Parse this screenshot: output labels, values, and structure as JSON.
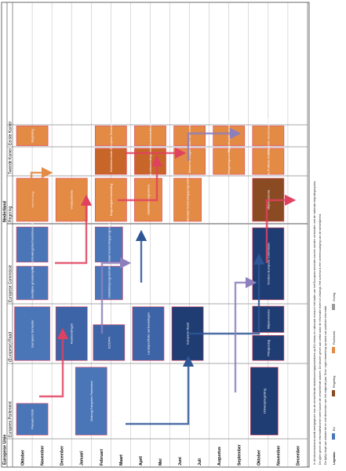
{
  "headers": {
    "eu": "Europese Unie",
    "nl": "Nederland",
    "cols": [
      "Europees Parlement",
      "(Europese) Raad",
      "Europese Commissie",
      "Regering",
      "Tweede Kamer",
      "Eerste Kamer"
    ]
  },
  "months": [
    "Oktober",
    "November",
    "December",
    "Januari",
    "Februari",
    "Maart",
    "April",
    "Mei",
    "Juni",
    "Juli",
    "Augustus",
    "September",
    "Oktober",
    "November",
    "December"
  ],
  "boxes": [
    {
      "text": "Plenaire DGM",
      "color": "#4a76b8"
    },
    {
      "text": "Europees Semester",
      "color": "#4a76b8"
    },
    {
      "text": "Jaarlijkse groeianalyse",
      "color": "#4a76b8"
    },
    {
      "text": "Waarschuwingsmechanismeverslag",
      "color": "#4a76b8"
    },
    {
      "text": "Aanbevelingen",
      "color": "#3d64a6"
    },
    {
      "text": "ECOFIN",
      "color": "#3d64a6"
    },
    {
      "text": "Dialoog Europees Parlement",
      "color": "#4a76b8"
    },
    {
      "text": "Stabiliteitsprogramma",
      "color": "#4a76b8"
    },
    {
      "text": "Nationaal hervormingsprogramma",
      "color": "#4a76b8"
    },
    {
      "text": "Landspecifieke aanbevelingen",
      "color": "#3d64a6"
    },
    {
      "text": "Europese Raad",
      "color": "#1f3d73"
    },
    {
      "text": "Ontwerpbegroting",
      "color": "#1f3d73"
    },
    {
      "text": "Oordeel Europese Commissie",
      "color": "#1f3d73"
    },
    {
      "text": "Prinsjesdag",
      "color": "#1f3d73"
    },
    {
      "text": "Miljoenennota",
      "color": "#1f3d73"
    },
    {
      "text": "Jaarverslag",
      "color": "#e38a45"
    },
    {
      "text": "Voorjaarsnota",
      "color": "#e38a45"
    },
    {
      "text": "Begrotingsbehandeling",
      "color": "#e38a45"
    },
    {
      "text": "Stabiliteitsprogramma",
      "color": "#e38a45"
    },
    {
      "text": "Nationaal hervormingsprogramma",
      "color": "#e38a45"
    },
    {
      "text": "Kabinetsreactie",
      "color": "#c8662a"
    },
    {
      "text": "Verantwoordingsdebat",
      "color": "#c8662a"
    },
    {
      "text": "Beleid en budget",
      "color": "#e38a45"
    },
    {
      "text": "Wetgevingsoverleg",
      "color": "#e38a45"
    },
    {
      "text": "Algemene Politieke Beschouwingen",
      "color": "#e38a45"
    },
    {
      "text": "Begroting",
      "color": "#e38a45"
    },
    {
      "text": "Europees Semester",
      "color": "#e38a45"
    },
    {
      "text": "Commissiedebat",
      "color": "#e38a45"
    },
    {
      "text": "Plenaire behandeling",
      "color": "#e38a45"
    },
    {
      "text": "Begrotingsbehandeling",
      "color": "#e38a45"
    },
    {
      "text": "Miljoenennota",
      "color": "#8a4a22"
    },
    {
      "text": "Financiële beschouwingen",
      "color": "#e38a45"
    }
  ],
  "footer": {
    "lines": [
      "In dit stroomschema wordt weergegeven hoe de verschillende besluitvormingsprocedures op EU-niveau en nationaal niveau in het kader van het Europees semester kunnen worden verbonden met de nationale begrotingscyclus.",
      "De pijlen geven de informatiestromen weer tussen de verschillende actoren. De kleuren geven aan welke actor de informatie levert of ontvangt. Het schema is een vereenvoudiging van de werkelijkheid.",
      "De tijdlijn loopt van oktober tot en met december van het volgende jaar. Bron: eigen bewerking op basis van publieke informatie."
    ],
    "legend_label": "Legenda:",
    "legend": [
      "EU",
      "Regering",
      "Parlement",
      "Overig"
    ]
  },
  "colors": {
    "eu_blue": "#4a76b8",
    "eu_dark": "#1f3d73",
    "nl_orange": "#e38a45",
    "nl_dark": "#8a4a22",
    "arrow_red": "#e0415f",
    "arrow_purple": "#8d7fbd",
    "arrow_blue": "#2e5696",
    "arrow_orange": "#e38a45"
  }
}
